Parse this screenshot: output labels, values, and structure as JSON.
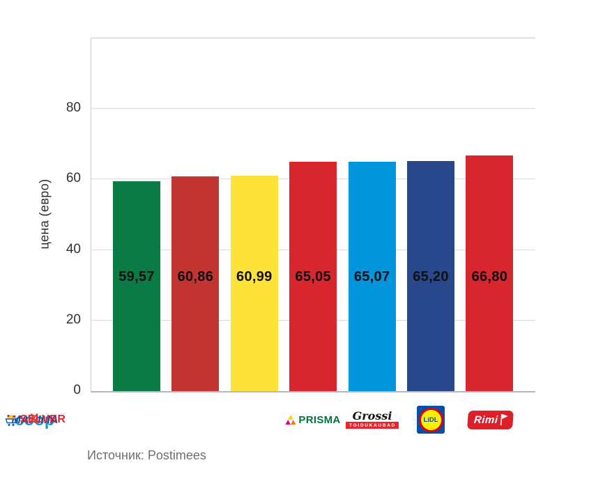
{
  "chart_data": {
    "type": "bar",
    "title": "",
    "xlabel": "",
    "ylabel": "цена (евро)",
    "ylim": [
      0,
      100
    ],
    "yticks": [
      0,
      20,
      40,
      60,
      80
    ],
    "grid": true,
    "legend": false,
    "categories": [
      "Prisma",
      "Grossi Toidukaubad",
      "Lidl",
      "Rimi",
      "Coop",
      "Maxima",
      "Selver"
    ],
    "values": [
      59.57,
      60.86,
      60.99,
      65.05,
      65.07,
      65.2,
      66.8
    ],
    "value_labels": [
      "59,57",
      "60,86",
      "60,99",
      "65,05",
      "65,07",
      "65,20",
      "66,80"
    ],
    "bar_colors": [
      "#0a7b45",
      "#c23430",
      "#fde239",
      "#d8262e",
      "#0295db",
      "#28488b",
      "#d8262e"
    ],
    "source": "Источник: Postimees"
  },
  "logos": {
    "prisma": {
      "text": "PRISMA"
    },
    "grossi": {
      "script": "Grossi",
      "band": "TOIDUKAUBAD"
    },
    "lidl": {
      "text": "LiDL"
    },
    "rimi": {
      "text": "Rimi"
    },
    "coop": {
      "text": "coop"
    },
    "maxima": {
      "pre": "MA",
      "x": "X",
      "post": "IMA"
    },
    "selver": {
      "text": "SELVER"
    }
  }
}
